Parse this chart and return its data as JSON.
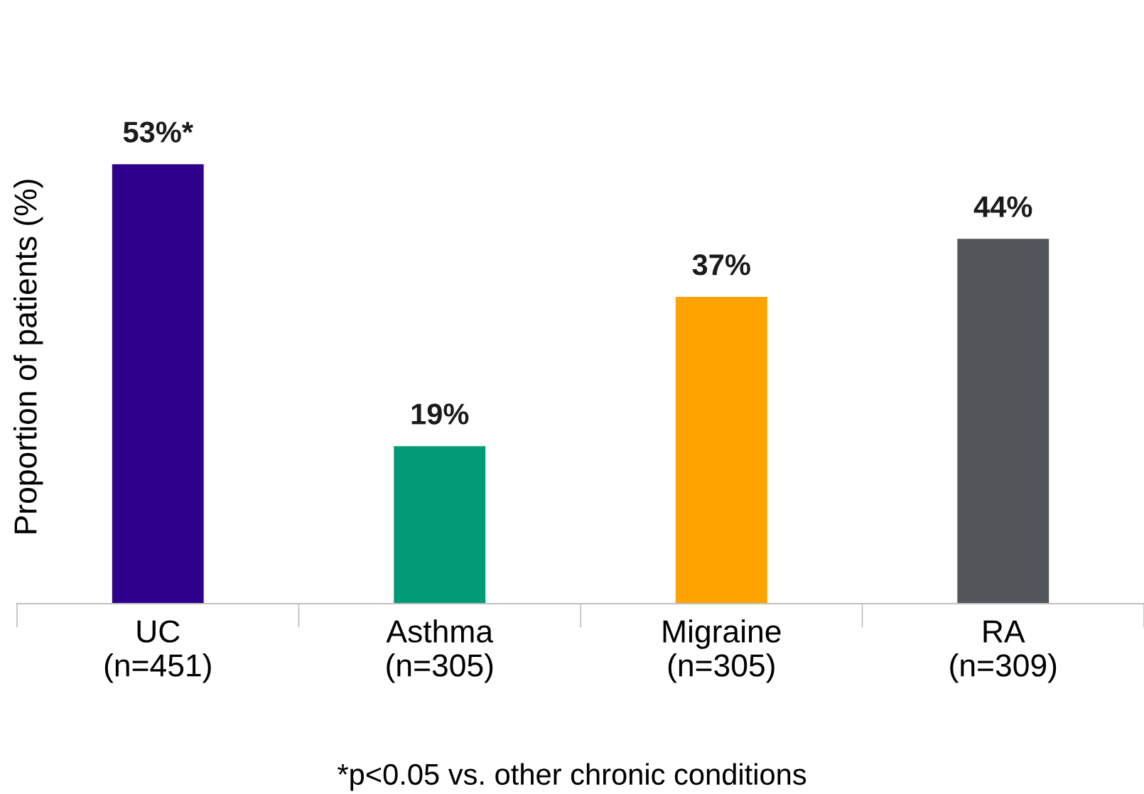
{
  "chart_data": {
    "type": "bar",
    "ylabel": "Proportion of patients (%)",
    "categories": [
      "UC\n(n=451)",
      "Asthma\n(n=305)",
      "Migraine\n(n=305)",
      "RA\n(n=309)"
    ],
    "values": [
      53,
      19,
      37,
      44
    ],
    "colors": [
      "#2e008b",
      "#009a77",
      "#ffa300",
      "#53565a"
    ],
    "value_labels": [
      "53%*",
      "19%",
      "37%",
      "44%"
    ],
    "annotations": [
      "*p<0.05 vs. other chronic conditions"
    ],
    "grid": false,
    "legend": false
  }
}
